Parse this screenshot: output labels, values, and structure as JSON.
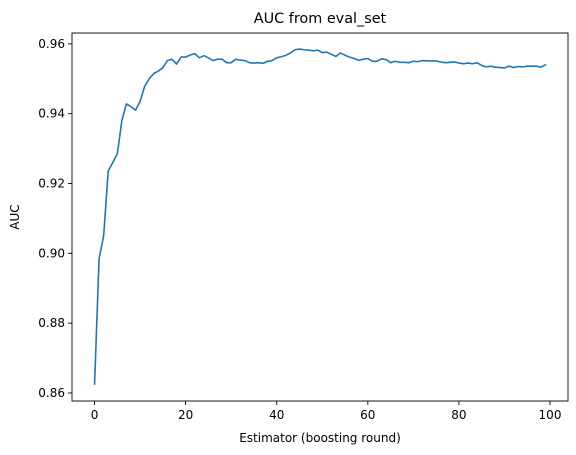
{
  "chart_data": {
    "type": "line",
    "title": "AUC from eval_set",
    "xlabel": "Estimator (boosting round)",
    "ylabel": "AUC",
    "xlim": [
      -4.95,
      103.95
    ],
    "ylim": [
      0.8577,
      0.9631
    ],
    "xticks": [
      0,
      20,
      40,
      60,
      80,
      100
    ],
    "xtick_labels": [
      "0",
      "20",
      "40",
      "60",
      "80",
      "100"
    ],
    "yticks": [
      0.86,
      0.88,
      0.9,
      0.92,
      0.94,
      0.96
    ],
    "ytick_labels": [
      "0.86",
      "0.88",
      "0.90",
      "0.92",
      "0.94",
      "0.96"
    ],
    "grid": false,
    "series": [
      {
        "color": "#1f77b4",
        "x": [
          0,
          1,
          2,
          3,
          4,
          5,
          6,
          7,
          8,
          9,
          10,
          11,
          12,
          13,
          14,
          15,
          16,
          17,
          18,
          19,
          20,
          21,
          22,
          23,
          24,
          25,
          26,
          27,
          28,
          29,
          30,
          31,
          32,
          33,
          34,
          35,
          36,
          37,
          38,
          39,
          40,
          41,
          42,
          43,
          44,
          45,
          46,
          47,
          48,
          49,
          50,
          51,
          52,
          53,
          54,
          55,
          56,
          57,
          58,
          59,
          60,
          61,
          62,
          63,
          64,
          65,
          66,
          67,
          68,
          69,
          70,
          71,
          72,
          73,
          74,
          75,
          76,
          77,
          78,
          79,
          80,
          81,
          82,
          83,
          84,
          85,
          86,
          87,
          88,
          89,
          90,
          91,
          92,
          93,
          94,
          95,
          96,
          97,
          98,
          99
        ],
        "y": [
          0.8625,
          0.8985,
          0.905,
          0.9235,
          0.926,
          0.9285,
          0.938,
          0.9428,
          0.942,
          0.941,
          0.9435,
          0.9478,
          0.95,
          0.9515,
          0.9522,
          0.9532,
          0.9552,
          0.9556,
          0.9542,
          0.9562,
          0.9562,
          0.9568,
          0.9572,
          0.956,
          0.9566,
          0.956,
          0.9552,
          0.9556,
          0.9556,
          0.9546,
          0.9546,
          0.9556,
          0.9553,
          0.9552,
          0.9546,
          0.9545,
          0.9546,
          0.9544,
          0.955,
          0.9552,
          0.956,
          0.9563,
          0.9567,
          0.9574,
          0.9583,
          0.9585,
          0.9583,
          0.9582,
          0.958,
          0.9582,
          0.9575,
          0.9576,
          0.957,
          0.9564,
          0.9574,
          0.9567,
          0.9562,
          0.9558,
          0.9553,
          0.9556,
          0.9558,
          0.955,
          0.955,
          0.9557,
          0.9555,
          0.9546,
          0.955,
          0.9547,
          0.9547,
          0.9546,
          0.955,
          0.9549,
          0.9552,
          0.9551,
          0.9551,
          0.9551,
          0.9548,
          0.9546,
          0.9547,
          0.9548,
          0.9545,
          0.9543,
          0.9545,
          0.9543,
          0.9546,
          0.9538,
          0.9534,
          0.9536,
          0.9533,
          0.9532,
          0.9531,
          0.9536,
          0.9532,
          0.9535,
          0.9534,
          0.9536,
          0.9536,
          0.9536,
          0.9533,
          0.954
        ]
      }
    ]
  }
}
